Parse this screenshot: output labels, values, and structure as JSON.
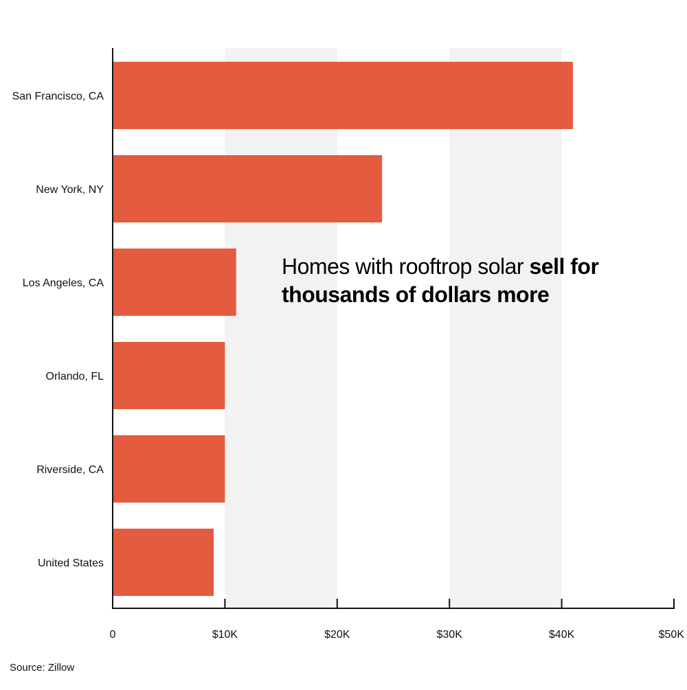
{
  "chart_data": {
    "type": "bar",
    "orientation": "horizontal",
    "categories": [
      "San Francisco, CA",
      "New York, NY",
      "Los Angeles, CA",
      "Orlando, FL",
      "Riverside, CA",
      "United States"
    ],
    "values": [
      41000,
      24000,
      11000,
      10000,
      10000,
      9000
    ],
    "xlim": [
      0,
      50000
    ],
    "xticks": [
      0,
      10000,
      20000,
      30000,
      40000,
      50000
    ],
    "xtick_labels": [
      "0",
      "$10K",
      "$20K",
      "$30K",
      "$40K",
      "$50K"
    ],
    "grid": "alternating shaded bands",
    "legend": "none",
    "annotation": {
      "light_text": "Homes with rooftrop solar ",
      "bold_text": "sell for thousands of dollars more"
    },
    "source": "Source: Zillow",
    "colors": {
      "bar": "#e55b3f",
      "band": "#f2f2f2",
      "axis": "#111111"
    }
  }
}
